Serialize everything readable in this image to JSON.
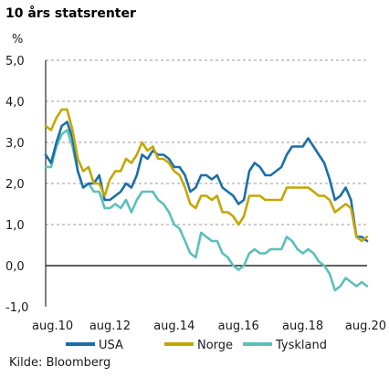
{
  "chart_data": {
    "type": "line",
    "title": "10 års statsrenter",
    "ylabel": "%",
    "source": "Kilde: Bloomberg",
    "ylim": [
      -1,
      5
    ],
    "yticks": [
      "5,0",
      "4,0",
      "3,0",
      "2,0",
      "1,0",
      "0,0",
      "-1,0"
    ],
    "ytick_values": [
      5,
      4,
      3,
      2,
      1,
      0,
      -1
    ],
    "xticks": [
      "aug.10",
      "aug.12",
      "aug.14",
      "aug.16",
      "aug.18",
      "aug.20"
    ],
    "xtick_values": [
      2010.583,
      2012.583,
      2014.583,
      2016.583,
      2018.583,
      2020.583
    ],
    "xlim": [
      2010.583,
      2020.583
    ],
    "grid": true,
    "legend_position": "bottom",
    "series": [
      {
        "name": "USA",
        "color": "#1b6fa8",
        "x": [
          2010.583,
          2010.75,
          2010.917,
          2011.083,
          2011.25,
          2011.417,
          2011.583,
          2011.75,
          2011.917,
          2012.083,
          2012.25,
          2012.417,
          2012.583,
          2012.75,
          2012.917,
          2013.083,
          2013.25,
          2013.417,
          2013.583,
          2013.75,
          2013.917,
          2014.083,
          2014.25,
          2014.417,
          2014.583,
          2014.75,
          2014.917,
          2015.083,
          2015.25,
          2015.417,
          2015.583,
          2015.75,
          2015.917,
          2016.083,
          2016.25,
          2016.417,
          2016.583,
          2016.75,
          2016.917,
          2017.083,
          2017.25,
          2017.417,
          2017.583,
          2017.75,
          2017.917,
          2018.083,
          2018.25,
          2018.417,
          2018.583,
          2018.75,
          2018.917,
          2019.083,
          2019.25,
          2019.417,
          2019.583,
          2019.75,
          2019.917,
          2020.083,
          2020.25,
          2020.417,
          2020.583
        ],
        "values": [
          2.7,
          2.5,
          3.0,
          3.4,
          3.5,
          3.1,
          2.3,
          1.9,
          2.0,
          2.0,
          2.2,
          1.6,
          1.6,
          1.7,
          1.8,
          2.0,
          1.9,
          2.2,
          2.7,
          2.6,
          2.8,
          2.7,
          2.7,
          2.6,
          2.4,
          2.4,
          2.2,
          1.8,
          1.9,
          2.2,
          2.2,
          2.1,
          2.2,
          1.9,
          1.8,
          1.7,
          1.5,
          1.6,
          2.3,
          2.5,
          2.4,
          2.2,
          2.2,
          2.3,
          2.4,
          2.7,
          2.9,
          2.9,
          2.9,
          3.1,
          2.9,
          2.7,
          2.5,
          2.1,
          1.6,
          1.7,
          1.9,
          1.6,
          0.7,
          0.7,
          0.6
        ]
      },
      {
        "name": "Norge",
        "color": "#c4a600",
        "x": [
          2010.583,
          2010.75,
          2010.917,
          2011.083,
          2011.25,
          2011.417,
          2011.583,
          2011.75,
          2011.917,
          2012.083,
          2012.25,
          2012.417,
          2012.583,
          2012.75,
          2012.917,
          2013.083,
          2013.25,
          2013.417,
          2013.583,
          2013.75,
          2013.917,
          2014.083,
          2014.25,
          2014.417,
          2014.583,
          2014.75,
          2014.917,
          2015.083,
          2015.25,
          2015.417,
          2015.583,
          2015.75,
          2015.917,
          2016.083,
          2016.25,
          2016.417,
          2016.583,
          2016.75,
          2016.917,
          2017.083,
          2017.25,
          2017.417,
          2017.583,
          2017.75,
          2017.917,
          2018.083,
          2018.25,
          2018.417,
          2018.583,
          2018.75,
          2018.917,
          2019.083,
          2019.25,
          2019.417,
          2019.583,
          2019.75,
          2019.917,
          2020.083,
          2020.25,
          2020.417,
          2020.583
        ],
        "values": [
          3.4,
          3.3,
          3.6,
          3.8,
          3.8,
          3.3,
          2.6,
          2.3,
          2.4,
          2.0,
          2.0,
          1.7,
          2.1,
          2.3,
          2.3,
          2.6,
          2.5,
          2.7,
          3.0,
          2.8,
          2.9,
          2.6,
          2.6,
          2.5,
          2.3,
          2.2,
          1.9,
          1.5,
          1.4,
          1.7,
          1.7,
          1.6,
          1.7,
          1.3,
          1.3,
          1.2,
          1.0,
          1.2,
          1.7,
          1.7,
          1.7,
          1.6,
          1.6,
          1.6,
          1.6,
          1.9,
          1.9,
          1.9,
          1.9,
          1.9,
          1.8,
          1.7,
          1.7,
          1.6,
          1.3,
          1.4,
          1.5,
          1.4,
          0.7,
          0.6,
          0.7
        ]
      },
      {
        "name": "Tyskland",
        "color": "#5bbfbb",
        "x": [
          2010.583,
          2010.75,
          2010.917,
          2011.083,
          2011.25,
          2011.417,
          2011.583,
          2011.75,
          2011.917,
          2012.083,
          2012.25,
          2012.417,
          2012.583,
          2012.75,
          2012.917,
          2013.083,
          2013.25,
          2013.417,
          2013.583,
          2013.75,
          2013.917,
          2014.083,
          2014.25,
          2014.417,
          2014.583,
          2014.75,
          2014.917,
          2015.083,
          2015.25,
          2015.417,
          2015.583,
          2015.75,
          2015.917,
          2016.083,
          2016.25,
          2016.417,
          2016.583,
          2016.75,
          2016.917,
          2017.083,
          2017.25,
          2017.417,
          2017.583,
          2017.75,
          2017.917,
          2018.083,
          2018.25,
          2018.417,
          2018.583,
          2018.75,
          2018.917,
          2019.083,
          2019.25,
          2019.417,
          2019.583,
          2019.75,
          2019.917,
          2020.083,
          2020.25,
          2020.417,
          2020.583
        ],
        "values": [
          2.4,
          2.4,
          2.9,
          3.2,
          3.3,
          2.9,
          2.3,
          1.9,
          2.0,
          1.8,
          1.8,
          1.4,
          1.4,
          1.5,
          1.4,
          1.6,
          1.3,
          1.6,
          1.8,
          1.8,
          1.8,
          1.6,
          1.5,
          1.3,
          1.0,
          0.9,
          0.6,
          0.3,
          0.2,
          0.8,
          0.7,
          0.6,
          0.6,
          0.3,
          0.2,
          0.0,
          -0.1,
          0.0,
          0.3,
          0.4,
          0.3,
          0.3,
          0.4,
          0.4,
          0.4,
          0.7,
          0.6,
          0.4,
          0.3,
          0.4,
          0.3,
          0.1,
          0.0,
          -0.2,
          -0.6,
          -0.5,
          -0.3,
          -0.4,
          -0.5,
          -0.4,
          -0.5
        ]
      }
    ]
  }
}
